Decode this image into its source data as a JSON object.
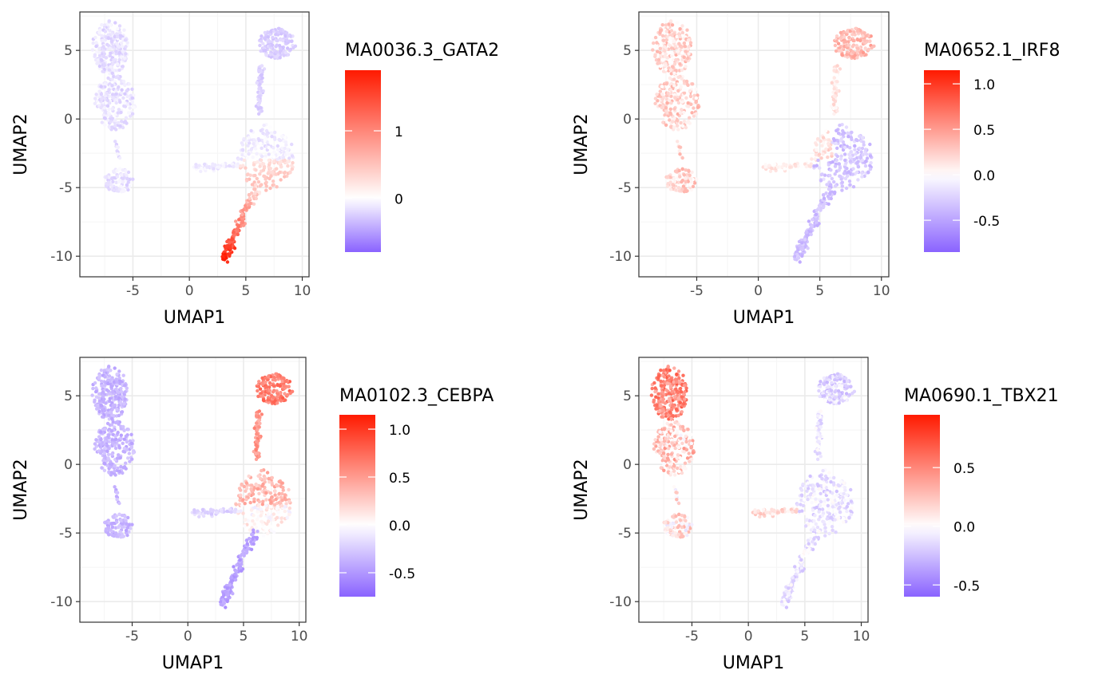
{
  "colors": {
    "low": "#8a63ff",
    "mid": "#ffffff",
    "high": "#ff1a00",
    "panel_border": "#333333",
    "grid_major": "#ebebeb",
    "grid_minor": "#f5f5f5"
  },
  "chart_data": [
    {
      "type": "scatter",
      "title": "",
      "xlabel": "UMAP1",
      "ylabel": "UMAP2",
      "legend_title": "MA0036.3_GATA2",
      "xlim": [
        -9.7,
        10.6
      ],
      "ylim": [
        -11.5,
        7.8
      ],
      "x_ticks": [
        -5,
        0,
        5,
        10
      ],
      "y_ticks": [
        5,
        0,
        -5,
        -10
      ],
      "color_range": [
        -0.8,
        1.9
      ],
      "legend_ticks": [
        1,
        0
      ],
      "grid": true,
      "legend_position": "right",
      "pattern": "gata2"
    },
    {
      "type": "scatter",
      "title": "",
      "xlabel": "UMAP1",
      "ylabel": "UMAP2",
      "legend_title": "MA0652.1_IRF8",
      "xlim": [
        -9.7,
        10.6
      ],
      "ylim": [
        -11.5,
        7.8
      ],
      "x_ticks": [
        -5,
        0,
        5,
        10
      ],
      "y_ticks": [
        5,
        0,
        -5,
        -10
      ],
      "color_range": [
        -0.85,
        1.15
      ],
      "legend_ticks": [
        1.0,
        0.5,
        0.0,
        -0.5
      ],
      "grid": true,
      "legend_position": "right",
      "pattern": "irf8"
    },
    {
      "type": "scatter",
      "title": "",
      "xlabel": "UMAP1",
      "ylabel": "UMAP2",
      "legend_title": "MA0102.3_CEBPA",
      "xlim": [
        -9.7,
        10.6
      ],
      "ylim": [
        -11.5,
        7.8
      ],
      "x_ticks": [
        -5,
        0,
        5,
        10
      ],
      "y_ticks": [
        5,
        0,
        -5,
        -10
      ],
      "color_range": [
        -0.75,
        1.15
      ],
      "legend_ticks": [
        1.0,
        0.5,
        0.0,
        -0.5
      ],
      "grid": true,
      "legend_position": "right",
      "pattern": "cebpa"
    },
    {
      "type": "scatter",
      "title": "",
      "xlabel": "UMAP1",
      "ylabel": "UMAP2",
      "legend_title": "MA0690.1_TBX21",
      "xlim": [
        -9.7,
        10.6
      ],
      "ylim": [
        -11.5,
        7.8
      ],
      "x_ticks": [
        -5,
        0,
        5,
        10
      ],
      "y_ticks": [
        5,
        0,
        -5,
        -10
      ],
      "color_range": [
        -0.6,
        0.95
      ],
      "legend_ticks": [
        0.5,
        0.0,
        -0.5
      ],
      "grid": true,
      "legend_position": "right",
      "pattern": "tbx21"
    }
  ]
}
